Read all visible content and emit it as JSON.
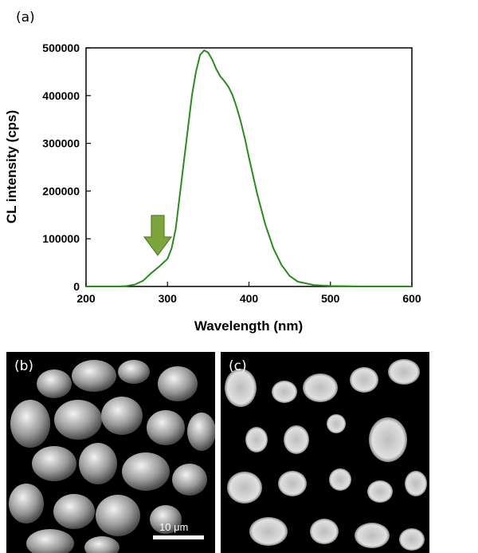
{
  "panels": {
    "a_label": "(a)",
    "b_label": "(b)",
    "c_label": "(c)",
    "scale_bar": "10 μm"
  },
  "colors": {
    "curve": "#2a8a1e",
    "arrow_fill": "#7ca63c",
    "arrow_stroke": "#5d7d2a"
  },
  "chart_data": {
    "type": "line",
    "xlabel": "Wavelength (nm)",
    "ylabel": "CL intensity (cps)",
    "xlim": [
      200,
      600
    ],
    "ylim": [
      0,
      500000
    ],
    "xticks": [
      "200",
      "300",
      "400",
      "500",
      "600"
    ],
    "yticks": [
      "0",
      "100000",
      "200000",
      "300000",
      "400000",
      "500000"
    ],
    "annotation": "down-arrow marking shoulder near 290 nm",
    "series": [
      {
        "x": [
          200,
          240,
          250,
          260,
          270,
          280,
          290,
          300,
          305,
          310,
          315,
          320,
          325,
          330,
          335,
          340,
          345,
          350,
          355,
          360,
          365,
          370,
          375,
          380,
          385,
          390,
          395,
          400,
          410,
          420,
          430,
          440,
          450,
          460,
          480,
          500,
          540,
          600
        ],
        "y": [
          0,
          0,
          1000,
          4000,
          12000,
          28000,
          42000,
          58000,
          80000,
          120000,
          190000,
          260000,
          330000,
          400000,
          450000,
          485000,
          495000,
          490000,
          475000,
          455000,
          440000,
          430000,
          418000,
          400000,
          375000,
          345000,
          310000,
          270000,
          195000,
          130000,
          80000,
          45000,
          22000,
          10000,
          3000,
          1000,
          0,
          0
        ]
      }
    ]
  }
}
